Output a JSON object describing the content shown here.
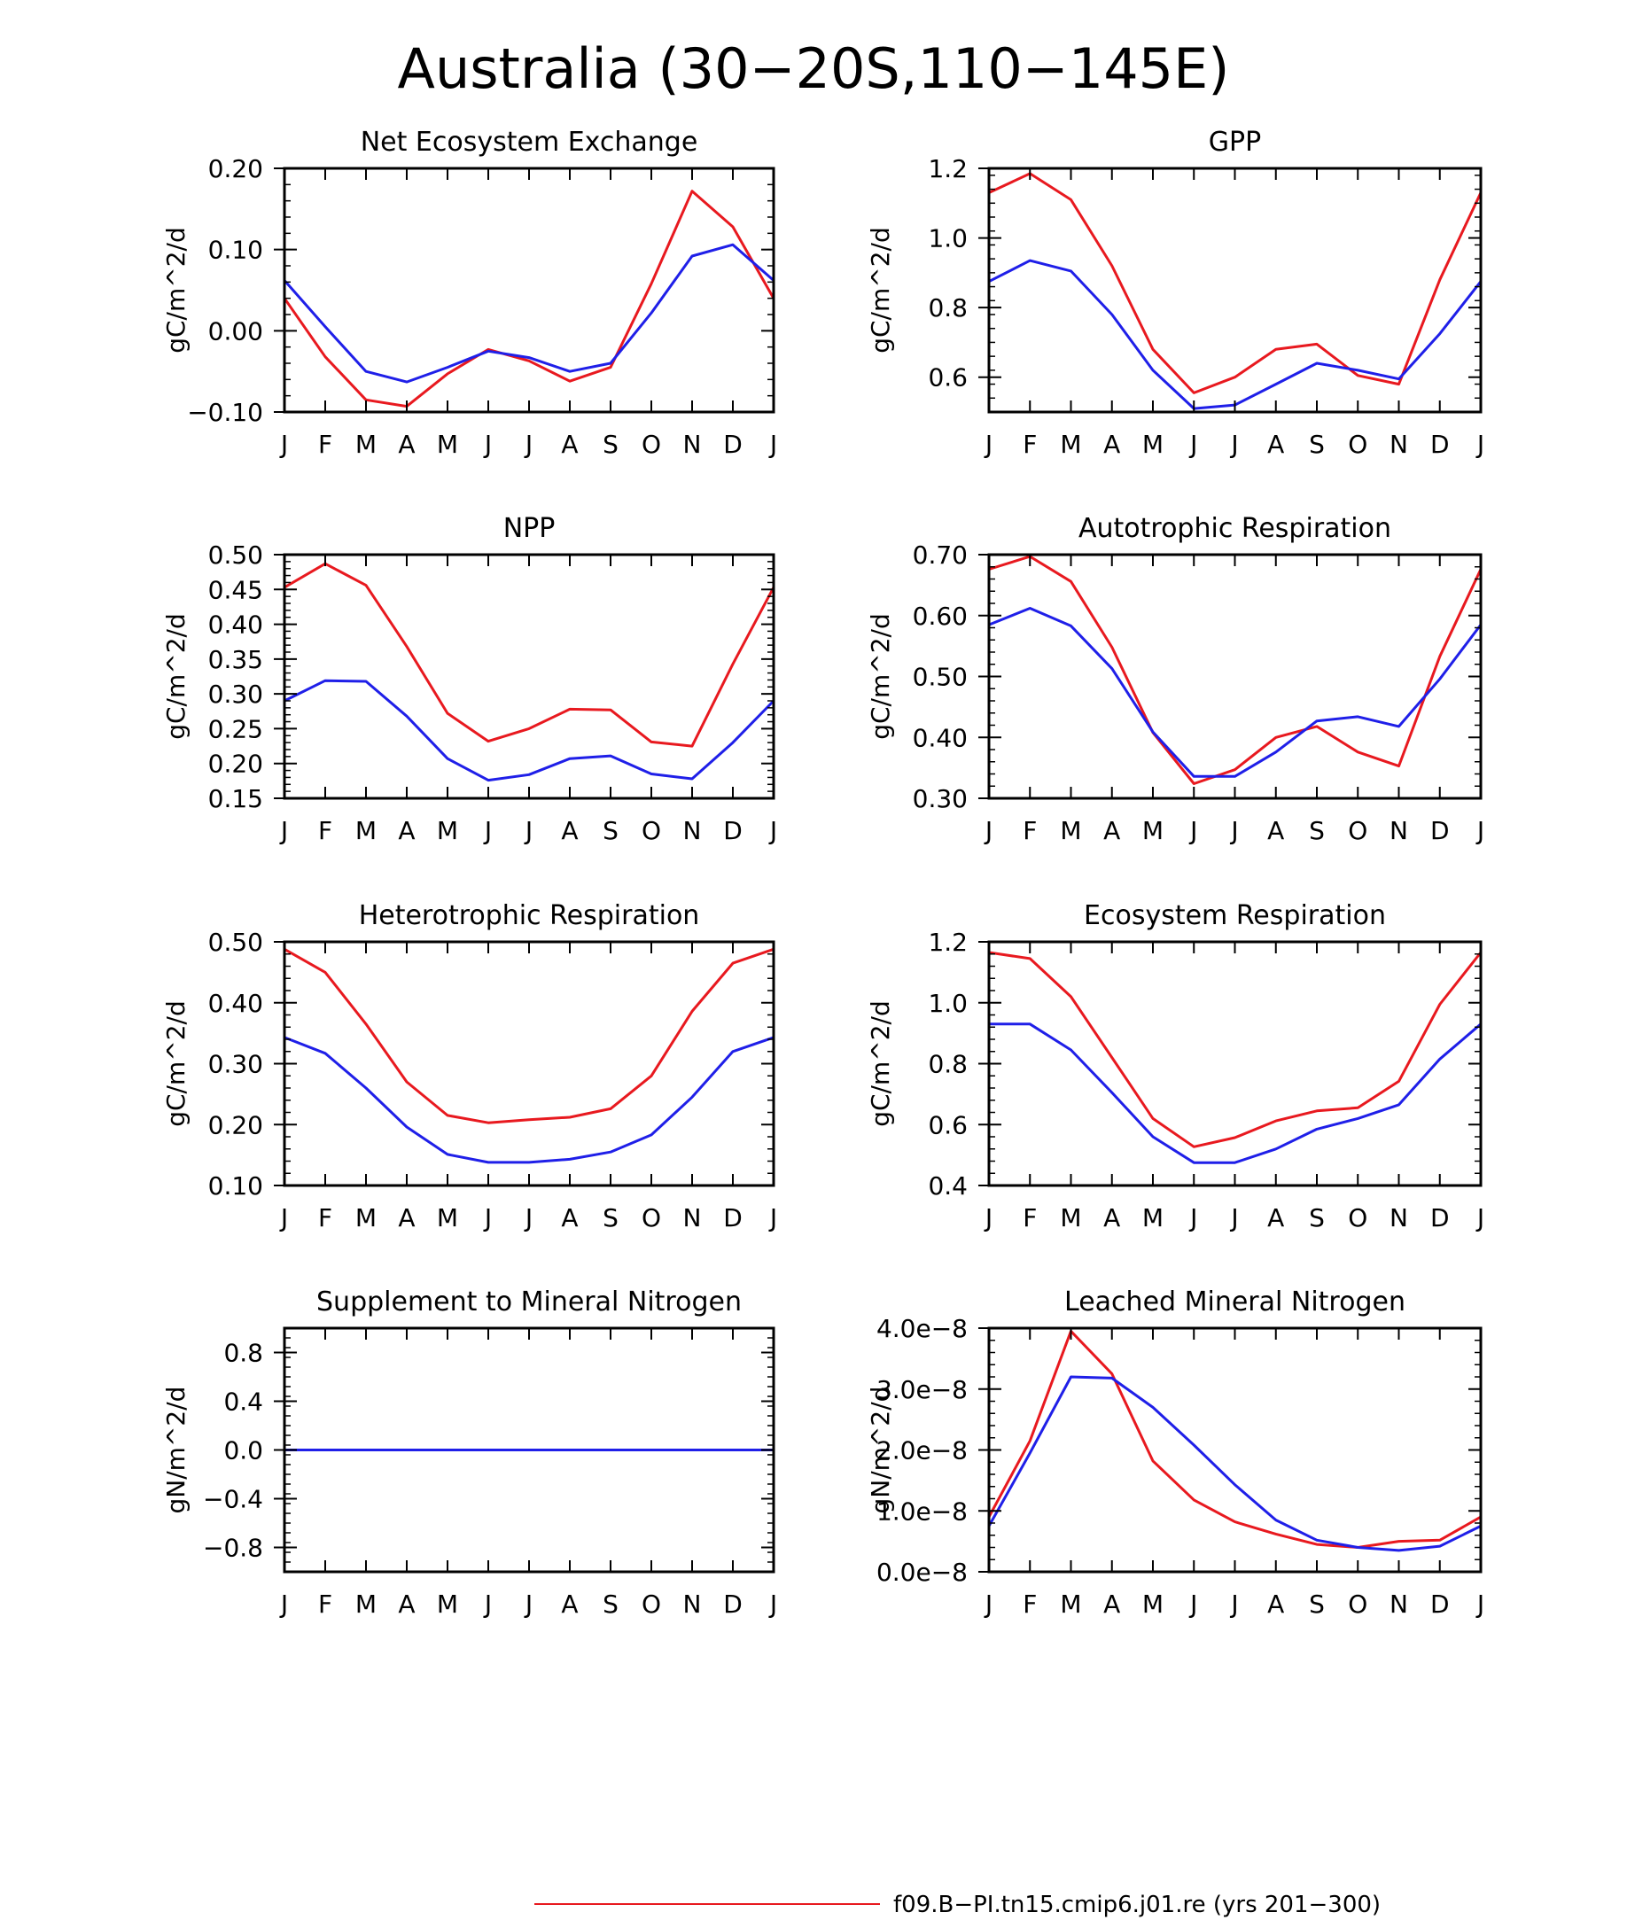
{
  "figure": {
    "title": "Australia (30−20S,110−145E)",
    "legend": [
      {
        "label": "f09.B−PI.tn15.cmip6.j01.re (yrs 201−300)",
        "color": "#e8191f"
      }
    ]
  },
  "months": [
    "J",
    "F",
    "M",
    "A",
    "M",
    "J",
    "J",
    "A",
    "S",
    "O",
    "N",
    "D",
    "J"
  ],
  "chart_data": [
    {
      "type": "line",
      "title": "Net Ecosystem Exchange",
      "ylabel": "gC/m^2/d",
      "ylim": [
        -0.1,
        0.2
      ],
      "yticks": [
        -0.1,
        0.0,
        0.1,
        0.2
      ],
      "yticklabels": [
        "−0.10",
        "0.00",
        "0.10",
        "0.20"
      ],
      "categories": [
        "J",
        "F",
        "M",
        "A",
        "M",
        "J",
        "J",
        "A",
        "S",
        "O",
        "N",
        "D",
        "J"
      ],
      "series": [
        {
          "color": "#e8191f",
          "values": [
            0.04,
            -0.032,
            -0.085,
            -0.093,
            -0.053,
            -0.023,
            -0.037,
            -0.062,
            -0.045,
            0.058,
            0.172,
            0.128,
            0.04
          ]
        },
        {
          "color": "#1f1fe8",
          "values": [
            0.062,
            0.005,
            -0.05,
            -0.063,
            -0.045,
            -0.025,
            -0.033,
            -0.05,
            -0.04,
            0.022,
            0.092,
            0.106,
            0.062
          ]
        }
      ]
    },
    {
      "type": "line",
      "title": "GPP",
      "ylabel": "gC/m^2/d",
      "ylim": [
        0.5,
        1.2
      ],
      "yticks": [
        0.6,
        0.8,
        1.0,
        1.2
      ],
      "yticklabels": [
        "0.6",
        "0.8",
        "1.0",
        "1.2"
      ],
      "categories": [
        "J",
        "F",
        "M",
        "A",
        "M",
        "J",
        "J",
        "A",
        "S",
        "O",
        "N",
        "D",
        "J"
      ],
      "series": [
        {
          "color": "#e8191f",
          "values": [
            1.13,
            1.185,
            1.11,
            0.92,
            0.68,
            0.555,
            0.6,
            0.68,
            0.695,
            0.605,
            0.58,
            0.88,
            1.13
          ]
        },
        {
          "color": "#1f1fe8",
          "values": [
            0.875,
            0.935,
            0.905,
            0.78,
            0.62,
            0.51,
            0.52,
            0.58,
            0.64,
            0.62,
            0.595,
            0.725,
            0.875
          ]
        }
      ]
    },
    {
      "type": "line",
      "title": "NPP",
      "ylabel": "gC/m^2/d",
      "ylim": [
        0.15,
        0.5
      ],
      "yticks": [
        0.15,
        0.2,
        0.25,
        0.3,
        0.35,
        0.4,
        0.45,
        0.5
      ],
      "yticklabels": [
        "0.15",
        "0.20",
        "0.25",
        "0.30",
        "0.35",
        "0.40",
        "0.45",
        "0.50"
      ],
      "categories": [
        "J",
        "F",
        "M",
        "A",
        "M",
        "J",
        "J",
        "A",
        "S",
        "O",
        "N",
        "D",
        "J"
      ],
      "series": [
        {
          "color": "#e8191f",
          "values": [
            0.453,
            0.487,
            0.456,
            0.368,
            0.272,
            0.232,
            0.25,
            0.278,
            0.277,
            0.231,
            0.225,
            0.343,
            0.453
          ]
        },
        {
          "color": "#1f1fe8",
          "values": [
            0.29,
            0.319,
            0.318,
            0.268,
            0.207,
            0.176,
            0.184,
            0.207,
            0.211,
            0.185,
            0.178,
            0.23,
            0.29
          ]
        }
      ]
    },
    {
      "type": "line",
      "title": "Autotrophic Respiration",
      "ylabel": "gC/m^2/d",
      "ylim": [
        0.3,
        0.7
      ],
      "yticks": [
        0.3,
        0.4,
        0.5,
        0.6,
        0.7
      ],
      "yticklabels": [
        "0.30",
        "0.40",
        "0.50",
        "0.60",
        "0.70"
      ],
      "categories": [
        "J",
        "F",
        "M",
        "A",
        "M",
        "J",
        "J",
        "A",
        "S",
        "O",
        "N",
        "D",
        "J"
      ],
      "series": [
        {
          "color": "#e8191f",
          "values": [
            0.676,
            0.697,
            0.656,
            0.548,
            0.408,
            0.324,
            0.347,
            0.4,
            0.418,
            0.376,
            0.353,
            0.533,
            0.676
          ]
        },
        {
          "color": "#1f1fe8",
          "values": [
            0.585,
            0.612,
            0.583,
            0.513,
            0.409,
            0.336,
            0.336,
            0.376,
            0.427,
            0.434,
            0.418,
            0.496,
            0.585
          ]
        }
      ]
    },
    {
      "type": "line",
      "title": "Heterotrophic Respiration",
      "ylabel": "gC/m^2/d",
      "ylim": [
        0.1,
        0.5
      ],
      "yticks": [
        0.1,
        0.2,
        0.3,
        0.4,
        0.5
      ],
      "yticklabels": [
        "0.10",
        "0.20",
        "0.30",
        "0.40",
        "0.50"
      ],
      "categories": [
        "J",
        "F",
        "M",
        "A",
        "M",
        "J",
        "J",
        "A",
        "S",
        "O",
        "N",
        "D",
        "J"
      ],
      "series": [
        {
          "color": "#e8191f",
          "values": [
            0.488,
            0.45,
            0.365,
            0.27,
            0.215,
            0.203,
            0.208,
            0.212,
            0.226,
            0.28,
            0.386,
            0.465,
            0.488
          ]
        },
        {
          "color": "#1f1fe8",
          "values": [
            0.343,
            0.317,
            0.26,
            0.196,
            0.151,
            0.138,
            0.138,
            0.143,
            0.155,
            0.183,
            0.245,
            0.32,
            0.343
          ]
        }
      ]
    },
    {
      "type": "line",
      "title": "Ecosystem Respiration",
      "ylabel": "gC/m^2/d",
      "ylim": [
        0.4,
        1.2
      ],
      "yticks": [
        0.4,
        0.6,
        0.8,
        1.0,
        1.2
      ],
      "yticklabels": [
        "0.4",
        "0.6",
        "0.8",
        "1.0",
        "1.2"
      ],
      "categories": [
        "J",
        "F",
        "M",
        "A",
        "M",
        "J",
        "J",
        "A",
        "S",
        "O",
        "N",
        "D",
        "J"
      ],
      "series": [
        {
          "color": "#e8191f",
          "values": [
            1.165,
            1.145,
            1.02,
            0.82,
            0.62,
            0.527,
            0.557,
            0.612,
            0.645,
            0.655,
            0.742,
            0.995,
            1.165
          ]
        },
        {
          "color": "#1f1fe8",
          "values": [
            0.93,
            0.93,
            0.845,
            0.705,
            0.56,
            0.475,
            0.475,
            0.52,
            0.585,
            0.62,
            0.665,
            0.815,
            0.93
          ]
        }
      ]
    },
    {
      "type": "line",
      "title": "Supplement to Mineral Nitrogen",
      "ylabel": "gN/m^2/d",
      "ylim": [
        -1.0,
        1.0
      ],
      "yticks": [
        -0.8,
        -0.4,
        0.0,
        0.4,
        0.8
      ],
      "yticklabels": [
        "−0.8",
        "−0.4",
        "0.0",
        "0.4",
        "0.8"
      ],
      "categories": [
        "J",
        "F",
        "M",
        "A",
        "M",
        "J",
        "J",
        "A",
        "S",
        "O",
        "N",
        "D",
        "J"
      ],
      "series": [
        {
          "color": "#e8191f",
          "values": [
            0,
            0,
            0,
            0,
            0,
            0,
            0,
            0,
            0,
            0,
            0,
            0,
            0
          ]
        },
        {
          "color": "#1f1fe8",
          "values": [
            0,
            0,
            0,
            0,
            0,
            0,
            0,
            0,
            0,
            0,
            0,
            0,
            0
          ]
        }
      ]
    },
    {
      "type": "line",
      "title": "Leached Mineral Nitrogen",
      "ylabel": "gN/m^2/d",
      "ylim": [
        0,
        4e-08
      ],
      "yticks": [
        0,
        1e-08,
        2e-08,
        3e-08,
        4e-08
      ],
      "yticklabels": [
        "0.0e−8",
        "1.0e−8",
        "2.0e−8",
        "3.0e−8",
        "4.0e−8"
      ],
      "categories": [
        "J",
        "F",
        "M",
        "A",
        "M",
        "J",
        "J",
        "A",
        "S",
        "O",
        "N",
        "D",
        "J"
      ],
      "series": [
        {
          "color": "#e8191f",
          "values": [
            9e-09,
            2.15e-08,
            3.95e-08,
            3.25e-08,
            1.82e-08,
            1.18e-08,
            8.2e-09,
            6.2e-09,
            4.5e-09,
            4e-09,
            5e-09,
            5.2e-09,
            9e-09
          ]
        },
        {
          "color": "#1f1fe8",
          "values": [
            7.5e-09,
            1.95e-08,
            3.2e-08,
            3.18e-08,
            2.7e-08,
            2.08e-08,
            1.43e-08,
            8.5e-09,
            5.2e-09,
            4e-09,
            3.5e-09,
            4.2e-09,
            7.5e-09
          ]
        }
      ]
    }
  ]
}
